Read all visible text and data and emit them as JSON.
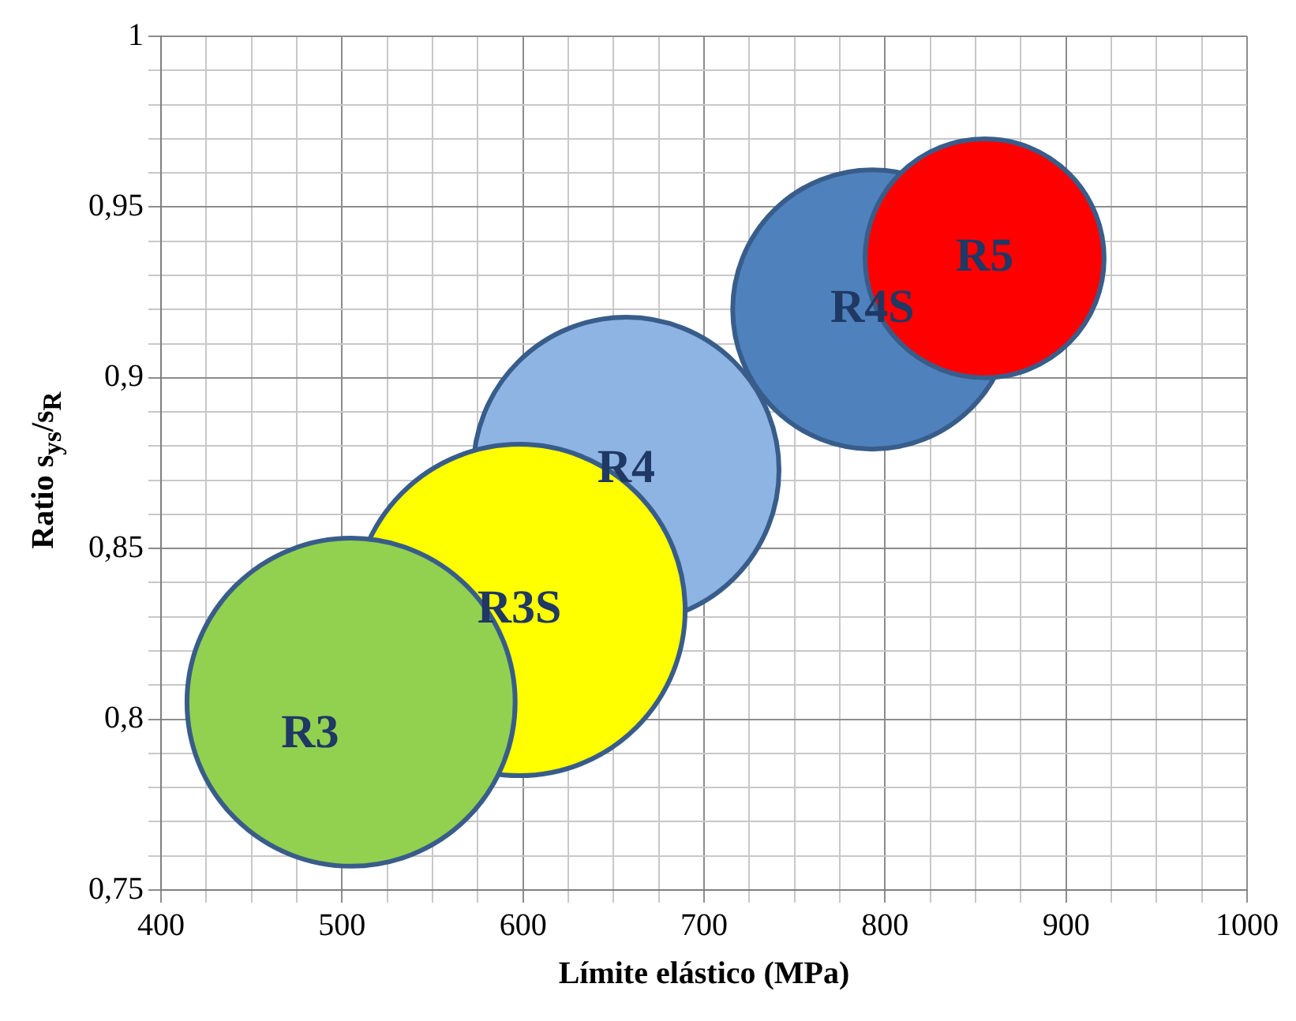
{
  "chart_data": {
    "type": "bubble",
    "xlabel": "Límite elástico (MPa)",
    "ylabel": "Ratio s$_{ys}$/s$_{R}$",
    "series": [
      {
        "name": "R3",
        "color": "#92d050",
        "x": [
          505
        ],
        "values": [
          0.805
        ],
        "sizes": [
          0.98
        ]
      },
      {
        "name": "R3S",
        "color": "#ffff00",
        "x": [
          598
        ],
        "values": [
          0.832
        ],
        "sizes": [
          1
        ]
      },
      {
        "name": "R4",
        "color": "#8eb4e3",
        "x": [
          657
        ],
        "values": [
          0.873
        ],
        "sizes": [
          0.85
        ]
      },
      {
        "name": "R5",
        "color": "#ff0000",
        "x": [
          855
        ],
        "values": [
          0.935
        ],
        "sizes": [
          0.52
        ]
      },
      {
        "name": "R4S",
        "color": "#4f81bd",
        "x": [
          793
        ],
        "values": [
          0.92
        ],
        "sizes": [
          0.71
        ]
      }
    ],
    "xlim": [
      400,
      1000
    ],
    "xticks": [
      400,
      {
        "value": 425,
        "label": null
      },
      {
        "value": 450,
        "label": null
      },
      {
        "value": 475,
        "label": null
      },
      500,
      {
        "value": 525,
        "label": null
      },
      {
        "value": 550,
        "label": null
      },
      {
        "value": 575,
        "label": null
      },
      600,
      {
        "value": 625,
        "label": null
      },
      {
        "value": 650,
        "label": null
      },
      {
        "value": 675,
        "label": null
      },
      700,
      {
        "value": 725,
        "label": null
      },
      {
        "value": 750,
        "label": null
      },
      {
        "value": 775,
        "label": null
      },
      800,
      {
        "value": 825,
        "label": null
      },
      {
        "value": 850,
        "label": null
      },
      {
        "value": 875,
        "label": null
      },
      900,
      {
        "value": 925,
        "label": null
      },
      {
        "value": 950,
        "label": null
      },
      {
        "value": 975,
        "label": null
      },
      1000
    ],
    "ylim": [
      0.75,
      1
    ],
    "yticks": [
      {
        "value": 0.75,
        "label": "0,75"
      },
      {
        "value": 0.76,
        "label": null
      },
      {
        "value": 0.77,
        "label": null
      },
      {
        "value": 0.78,
        "label": null
      },
      {
        "value": 0.79,
        "label": null
      },
      {
        "value": 0.8,
        "label": "0,8"
      },
      {
        "value": 0.81,
        "label": null
      },
      {
        "value": 0.82,
        "label": null
      },
      {
        "value": 0.83,
        "label": null
      },
      {
        "value": 0.84,
        "label": null
      },
      {
        "value": 0.85,
        "label": "0,85"
      },
      {
        "value": 0.86,
        "label": null
      },
      {
        "value": 0.87,
        "label": null
      },
      {
        "value": 0.88,
        "label": null
      },
      {
        "value": 0.89,
        "label": null
      },
      {
        "value": 0.9,
        "label": "0,9"
      },
      {
        "value": 0.91,
        "label": null
      },
      {
        "value": 0.92,
        "label": null
      },
      {
        "value": 0.93,
        "label": null
      },
      {
        "value": 0.94,
        "label": null
      },
      {
        "value": 0.95,
        "label": "0,95"
      },
      {
        "value": 0.96,
        "label": null
      },
      {
        "value": 0.97,
        "label": null
      },
      {
        "value": 0.98,
        "label": null
      },
      {
        "value": 0.99,
        "label": null
      },
      1
    ],
    "grid": true,
    "legend": false
  }
}
